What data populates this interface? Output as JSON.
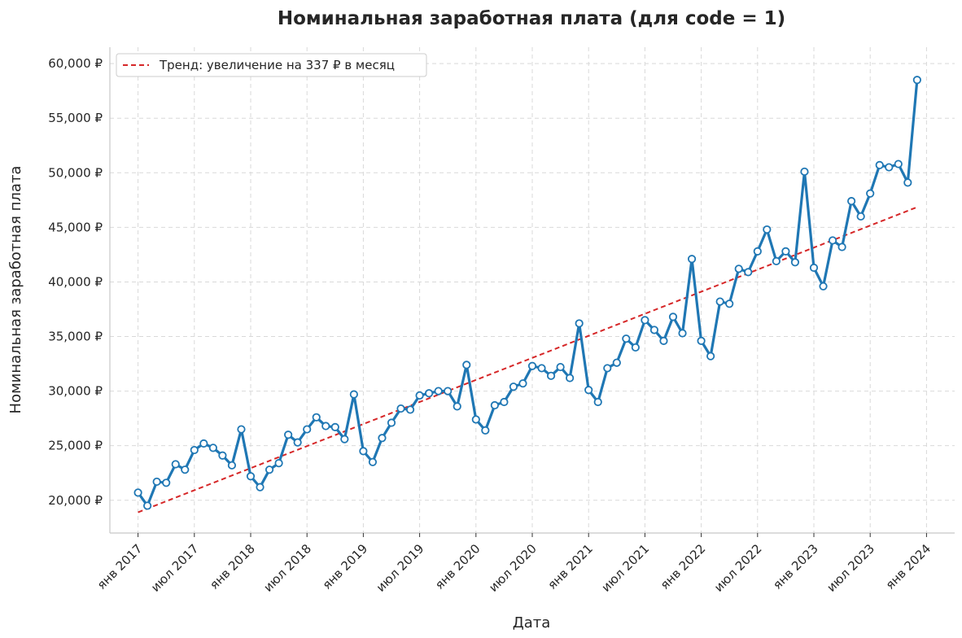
{
  "chart_data": {
    "type": "line",
    "title": "Номинальная заработная плата (для code = 1)",
    "xlabel": "Дата",
    "ylabel": "Номинальная заработная плата",
    "ylim": [
      17000,
      61500
    ],
    "xlim": [
      "2016-10-01",
      "2024-04-01"
    ],
    "y_ticks": [
      20000,
      25000,
      30000,
      35000,
      40000,
      45000,
      50000,
      55000,
      60000
    ],
    "y_tick_labels": [
      "20,000 ₽",
      "25,000 ₽",
      "30,000 ₽",
      "35,000 ₽",
      "40,000 ₽",
      "45,000 ₽",
      "50,000 ₽",
      "55,000 ₽",
      "60,000 ₽"
    ],
    "x_ticks": [
      "2017-01-01",
      "2017-07-01",
      "2018-01-01",
      "2018-07-01",
      "2019-01-01",
      "2019-07-01",
      "2020-01-01",
      "2020-07-01",
      "2021-01-01",
      "2021-07-01",
      "2022-01-01",
      "2022-07-01",
      "2023-01-01",
      "2023-07-01",
      "2024-01-01"
    ],
    "x_tick_labels": [
      "янв 2017",
      "июл 2017",
      "янв 2018",
      "июл 2018",
      "янв 2019",
      "июл 2019",
      "янв 2020",
      "июл 2020",
      "янв 2021",
      "июл 2021",
      "янв 2022",
      "июл 2022",
      "янв 2023",
      "июл 2023",
      "янв 2024"
    ],
    "grid": true,
    "legend_position": "top-left",
    "colors": {
      "series": "#1f77b4",
      "trend": "#d62728",
      "marker_fill": "#ffffff"
    },
    "series": [
      {
        "x_start": "2017-01",
        "frequency": "monthly",
        "values": [
          20700,
          19500,
          21700,
          21600,
          23300,
          22800,
          24600,
          25200,
          24800,
          24100,
          23200,
          26500,
          22200,
          21200,
          22800,
          23400,
          26000,
          25300,
          26500,
          27600,
          26800,
          26700,
          25600,
          29700,
          24500,
          23500,
          25700,
          27100,
          28400,
          28300,
          29600,
          29800,
          30000,
          30000,
          28600,
          32400,
          27400,
          26400,
          28700,
          29000,
          30400,
          30700,
          32300,
          32100,
          31400,
          32200,
          31200,
          36200,
          30100,
          29000,
          32100,
          32600,
          34800,
          34000,
          36500,
          35600,
          34600,
          36800,
          35300,
          42100,
          34600,
          33200,
          38200,
          38000,
          41200,
          40900,
          42800,
          44800,
          41900,
          42800,
          41800,
          50100,
          41300,
          39600,
          43800,
          43200,
          47400,
          46000,
          48100,
          50700,
          50500,
          50800,
          49100,
          58500
        ]
      },
      {
        "name": "Тренд: увеличение на 337 ₽ в месяц",
        "type": "trend",
        "x": [
          "2017-01",
          "2023-12"
        ],
        "values": [
          18900,
          46850
        ]
      }
    ]
  }
}
